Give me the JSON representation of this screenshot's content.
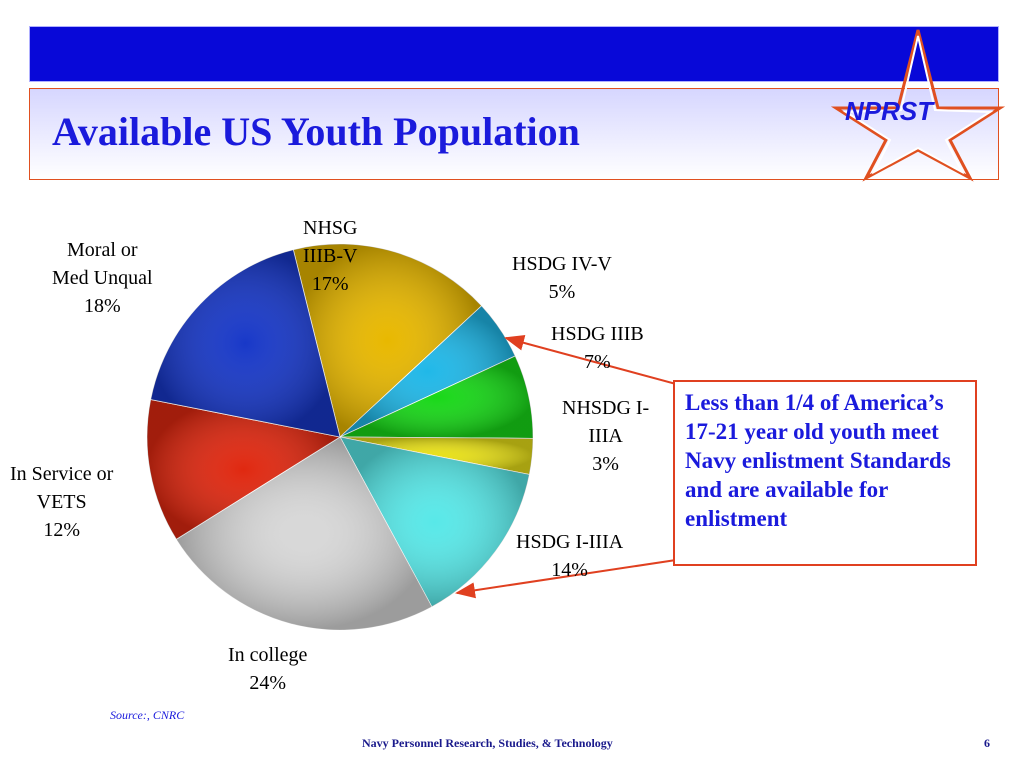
{
  "header": {
    "title": "Available US Youth Population",
    "logo_text": "NPRST"
  },
  "chart_data": {
    "type": "pie",
    "title": "",
    "slices": [
      {
        "label": "NHSG IIIB-V",
        "value": 17,
        "color": "#e8b800"
      },
      {
        "label": "HSDG IV-V",
        "value": 5,
        "color": "#20b8e8"
      },
      {
        "label": "HSDG IIIB",
        "value": 7,
        "color": "#18d818"
      },
      {
        "label": "NHSDG I-IIIA",
        "value": 3,
        "color": "#e8e018"
      },
      {
        "label": "HSDG I-IIIA",
        "value": 14,
        "color": "#58e8e8"
      },
      {
        "label": "In college",
        "value": 24,
        "color": "#d8d8d8"
      },
      {
        "label": "In Service or VETS",
        "value": 12,
        "color": "#e02810"
      },
      {
        "label": "Moral or Med Unqual",
        "value": 18,
        "color": "#1838c8"
      }
    ],
    "labels": {
      "nhsg": {
        "line1": "NHSG",
        "line2": "IIIB-V",
        "pct": "17%"
      },
      "hsdg_iv": {
        "line1": "HSDG IV-V",
        "pct": "5%"
      },
      "hsdg_iiib": {
        "line1": "HSDG IIIB",
        "pct": "7%"
      },
      "nhsdg": {
        "line1": "NHSDG I-",
        "line2": "IIIA",
        "pct": "3%"
      },
      "hsdg_i": {
        "line1": "HSDG I-IIIA",
        "pct": "14%"
      },
      "college": {
        "line1": "In college",
        "pct": "24%"
      },
      "service": {
        "line1": "In Service or",
        "line2": "VETS",
        "pct": "12%"
      },
      "moral": {
        "line1": "Moral or",
        "line2": "Med Unqual",
        "pct": "18%"
      }
    }
  },
  "callout": {
    "text": "Less than 1/4 of America’s 17-21 year old youth meet Navy enlistment Standards and are available for enlistment",
    "color": "#1a1adc"
  },
  "source": "Source:, CNRC",
  "footer": {
    "org": "Navy Personnel Research, Studies, & Technology",
    "page": "6"
  }
}
